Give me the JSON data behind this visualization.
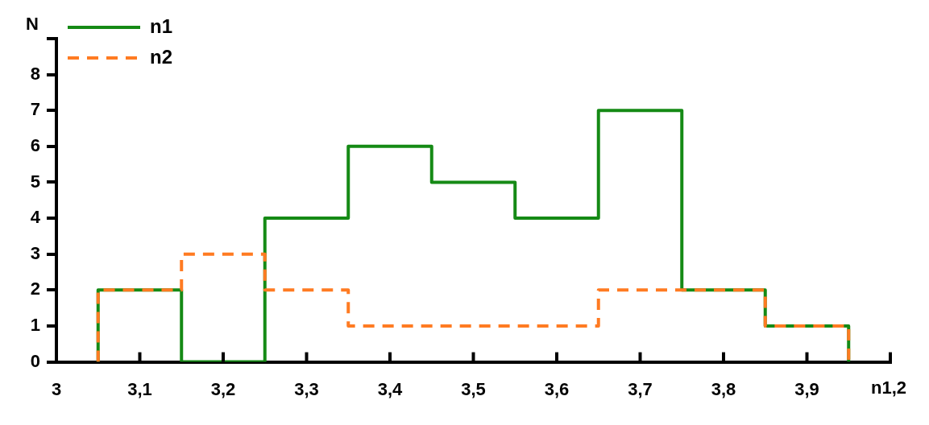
{
  "chart_data": {
    "type": "step",
    "xlabel": "n1,2",
    "ylabel": "N",
    "xlim": [
      3,
      4
    ],
    "xticks": [
      3,
      {
        "value": 3.1,
        "label": "3,1"
      },
      {
        "value": 3.2,
        "label": "3,2"
      },
      {
        "value": 3.3,
        "label": "3,3"
      },
      {
        "value": 3.4,
        "label": "3,4"
      },
      {
        "value": 3.5,
        "label": "3,5"
      },
      {
        "value": 3.6,
        "label": "3,6"
      },
      {
        "value": 3.7,
        "label": "3,7"
      },
      {
        "value": 3.8,
        "label": "3,8"
      },
      {
        "value": 3.9,
        "label": "3,9"
      },
      {
        "value": 4,
        "label": null
      }
    ],
    "ylim": [
      0,
      9
    ],
    "yticks": [
      0,
      1,
      2,
      3,
      4,
      5,
      6,
      7,
      8,
      {
        "value": 9,
        "label": null
      }
    ],
    "x": [
      3.05,
      3.05,
      3.15,
      3.25,
      3.35,
      3.45,
      3.55,
      3.65,
      3.75,
      3.85,
      3.95
    ],
    "series": [
      {
        "name": "n1",
        "color": "#158a15",
        "line_style": "solid",
        "values": [
          0,
          2,
          0,
          4,
          6,
          5,
          4,
          7,
          2,
          1,
          0
        ]
      },
      {
        "name": "n2",
        "color": "#ff7b22",
        "line_style": "dashed",
        "values": [
          0,
          2,
          3,
          2,
          1,
          1,
          1,
          2,
          2,
          1,
          0
        ]
      }
    ],
    "grid": false,
    "legend": "top left",
    "marker": "none"
  }
}
